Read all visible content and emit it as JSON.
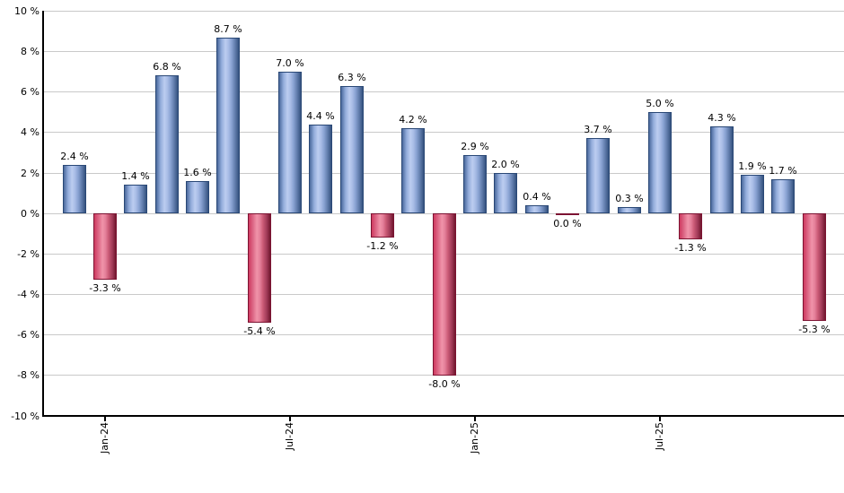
{
  "chart_data": {
    "type": "bar",
    "title": "",
    "xlabel": "",
    "ylabel": "",
    "unit": "%",
    "ylim": [
      -10,
      10
    ],
    "grid": true,
    "legend": "none",
    "colors": {
      "positive_bar": "#8aa3d3",
      "positive_bar_highlight": "#bccdf0",
      "positive_bar_edge": "#2a4876",
      "negative_bar": "#cb5b77",
      "negative_bar_highlight": "#f093a9",
      "negative_bar_edge": "#7c1332",
      "gridline": "#c9c9c9",
      "axis": "#000000",
      "label_text": "#000000",
      "background": "#ffffff"
    },
    "y_axis": {
      "max": 10,
      "min": -10,
      "step": 2,
      "ticks": [
        {
          "value": 10,
          "label": "10 %"
        },
        {
          "value": 8,
          "label": "8 %"
        },
        {
          "value": 6,
          "label": "6 %"
        },
        {
          "value": 4,
          "label": "4 %"
        },
        {
          "value": 2,
          "label": "2 %"
        },
        {
          "value": 0,
          "label": "0 %"
        },
        {
          "value": -2,
          "label": "-2 %"
        },
        {
          "value": -4,
          "label": "-4 %"
        },
        {
          "value": -6,
          "label": "-6 %"
        },
        {
          "value": -8,
          "label": "-8 %"
        },
        {
          "value": -10,
          "label": "-10 %"
        }
      ]
    },
    "x_ticks": [
      {
        "label": "Jan-24"
      },
      {
        "label": "Jul-24"
      },
      {
        "label": "Jan-25"
      },
      {
        "label": "Jul-25"
      }
    ],
    "bars": [
      {
        "month": "Dec-23",
        "value": 2.4,
        "label": "2.4 %"
      },
      {
        "month": "Jan-24",
        "value": -3.3,
        "label": "-3.3 %"
      },
      {
        "month": "Feb-24",
        "value": 1.4,
        "label": "1.4 %"
      },
      {
        "month": "Mar-24",
        "value": 6.8,
        "label": "6.8 %"
      },
      {
        "month": "Apr-24",
        "value": 1.6,
        "label": "1.6 %"
      },
      {
        "month": "May-24",
        "value": 8.7,
        "label": "8.7 %"
      },
      {
        "month": "Jun-24",
        "value": -5.4,
        "label": "-5.4 %"
      },
      {
        "month": "Jul-24",
        "value": 7.0,
        "label": "7.0 %"
      },
      {
        "month": "Aug-24",
        "value": 4.4,
        "label": "4.4 %"
      },
      {
        "month": "Sep-24",
        "value": 6.3,
        "label": "6.3 %"
      },
      {
        "month": "Oct-24",
        "value": -1.2,
        "label": "-1.2 %"
      },
      {
        "month": "Nov-24",
        "value": 4.2,
        "label": "4.2 %"
      },
      {
        "month": "Dec-24",
        "value": -8.0,
        "label": "-8.0 %"
      },
      {
        "month": "Jan-25",
        "value": 2.9,
        "label": "2.9 %"
      },
      {
        "month": "Feb-25",
        "value": 2.0,
        "label": "2.0 %"
      },
      {
        "month": "Mar-25",
        "value": 0.4,
        "label": "0.4 %"
      },
      {
        "month": "Apr-25",
        "value": 0.0,
        "label": "0.0 %",
        "negative": true
      },
      {
        "month": "May-25",
        "value": 3.7,
        "label": "3.7 %"
      },
      {
        "month": "Jun-25",
        "value": 0.3,
        "label": "0.3 %"
      },
      {
        "month": "Jul-25",
        "value": 5.0,
        "label": "5.0 %"
      },
      {
        "month": "Aug-25",
        "value": -1.3,
        "label": "-1.3 %"
      },
      {
        "month": "Sep-25",
        "value": 4.3,
        "label": "4.3 %"
      },
      {
        "month": "Oct-25",
        "value": 1.9,
        "label": "1.9 %"
      },
      {
        "month": "Nov-25",
        "value": 1.7,
        "label": "1.7 %"
      },
      {
        "month": "Dec-25",
        "value": -5.3,
        "label": "-5.3 %"
      }
    ]
  }
}
